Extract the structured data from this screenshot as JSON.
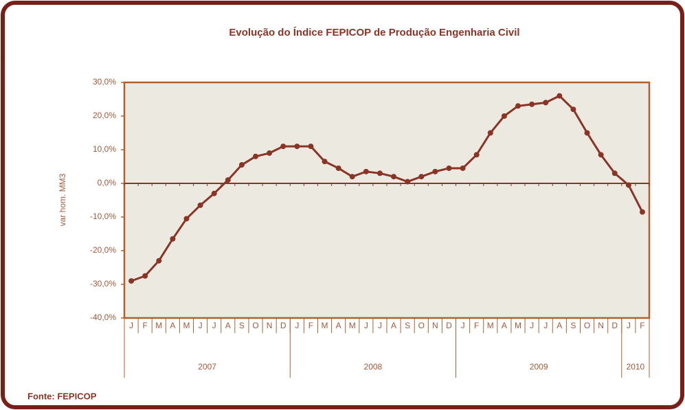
{
  "chart_data": {
    "type": "line",
    "title": "Evolução do Índice FEPICOP de Produção Engenharia Civil",
    "y_label": "var hom. MM3",
    "source": "Fonte: FEPICOP",
    "categories": [
      "J",
      "F",
      "M",
      "A",
      "M",
      "J",
      "J",
      "A",
      "S",
      "O",
      "N",
      "D",
      "J",
      "F",
      "M",
      "A",
      "M",
      "J",
      "J",
      "A",
      "S",
      "O",
      "N",
      "D",
      "J",
      "F",
      "M",
      "A",
      "M",
      "J",
      "J",
      "A",
      "S",
      "O",
      "N",
      "D",
      "J",
      "F"
    ],
    "year_groups": [
      {
        "label": "2007",
        "months": 12
      },
      {
        "label": "2008",
        "months": 12
      },
      {
        "label": "2009",
        "months": 12
      },
      {
        "label": "2010",
        "months": 2
      }
    ],
    "series": [
      {
        "name": "var hom. MM3",
        "color": "#8b3426",
        "values": [
          -29,
          -27.5,
          -23,
          -16.5,
          -10.5,
          -6.5,
          -3,
          1,
          5.5,
          8,
          9,
          11,
          11,
          11,
          6.5,
          4.5,
          2,
          3.5,
          3,
          2,
          0.5,
          2,
          3.5,
          4.5,
          4.5,
          8.5,
          15,
          20,
          23,
          23.5,
          24,
          26,
          22,
          15,
          8.5,
          3,
          -0.5,
          -8.5
        ]
      }
    ],
    "ylim": [
      -40,
      30
    ],
    "yticks": [
      {
        "value": -40,
        "label": "-40,0%"
      },
      {
        "value": -30,
        "label": "-30,0%"
      },
      {
        "value": -20,
        "label": "-20,0%"
      },
      {
        "value": -10,
        "label": "-10,0%"
      },
      {
        "value": 0,
        "label": "0,0%"
      },
      {
        "value": 10,
        "label": "10,0%"
      },
      {
        "value": 20,
        "label": "20,0%"
      },
      {
        "value": 30,
        "label": "30,0%"
      }
    ],
    "grid": false
  }
}
